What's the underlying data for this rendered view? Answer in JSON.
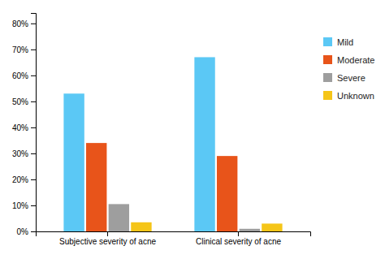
{
  "chart_data": {
    "type": "bar",
    "categories": [
      "Subjective severity of acne",
      "Clinical severity of acne"
    ],
    "series": [
      {
        "name": "Mild",
        "color": "#5BC8F5",
        "values": [
          0.53,
          0.67
        ]
      },
      {
        "name": "Moderate",
        "color": "#E8541A",
        "values": [
          0.34,
          0.29
        ]
      },
      {
        "name": "Severe",
        "color": "#9E9E9E",
        "values": [
          0.105,
          0.01
        ]
      },
      {
        "name": "Unknown",
        "color": "#F5C518",
        "values": [
          0.035,
          0.03
        ]
      }
    ],
    "ylim": [
      0,
      0.84
    ],
    "yticks": [
      {
        "value": 0.0,
        "label": "0%"
      },
      {
        "value": 0.1,
        "label": "10%"
      },
      {
        "value": 0.2,
        "label": "20%"
      },
      {
        "value": 0.3,
        "label": "30%"
      },
      {
        "value": 0.4,
        "label": "40%"
      },
      {
        "value": 0.5,
        "label": "50%"
      },
      {
        "value": 0.6,
        "label": "60%"
      },
      {
        "value": 0.7,
        "label": "70%"
      },
      {
        "value": 0.8,
        "label": "80%"
      }
    ],
    "grid": false,
    "legend": "right"
  }
}
